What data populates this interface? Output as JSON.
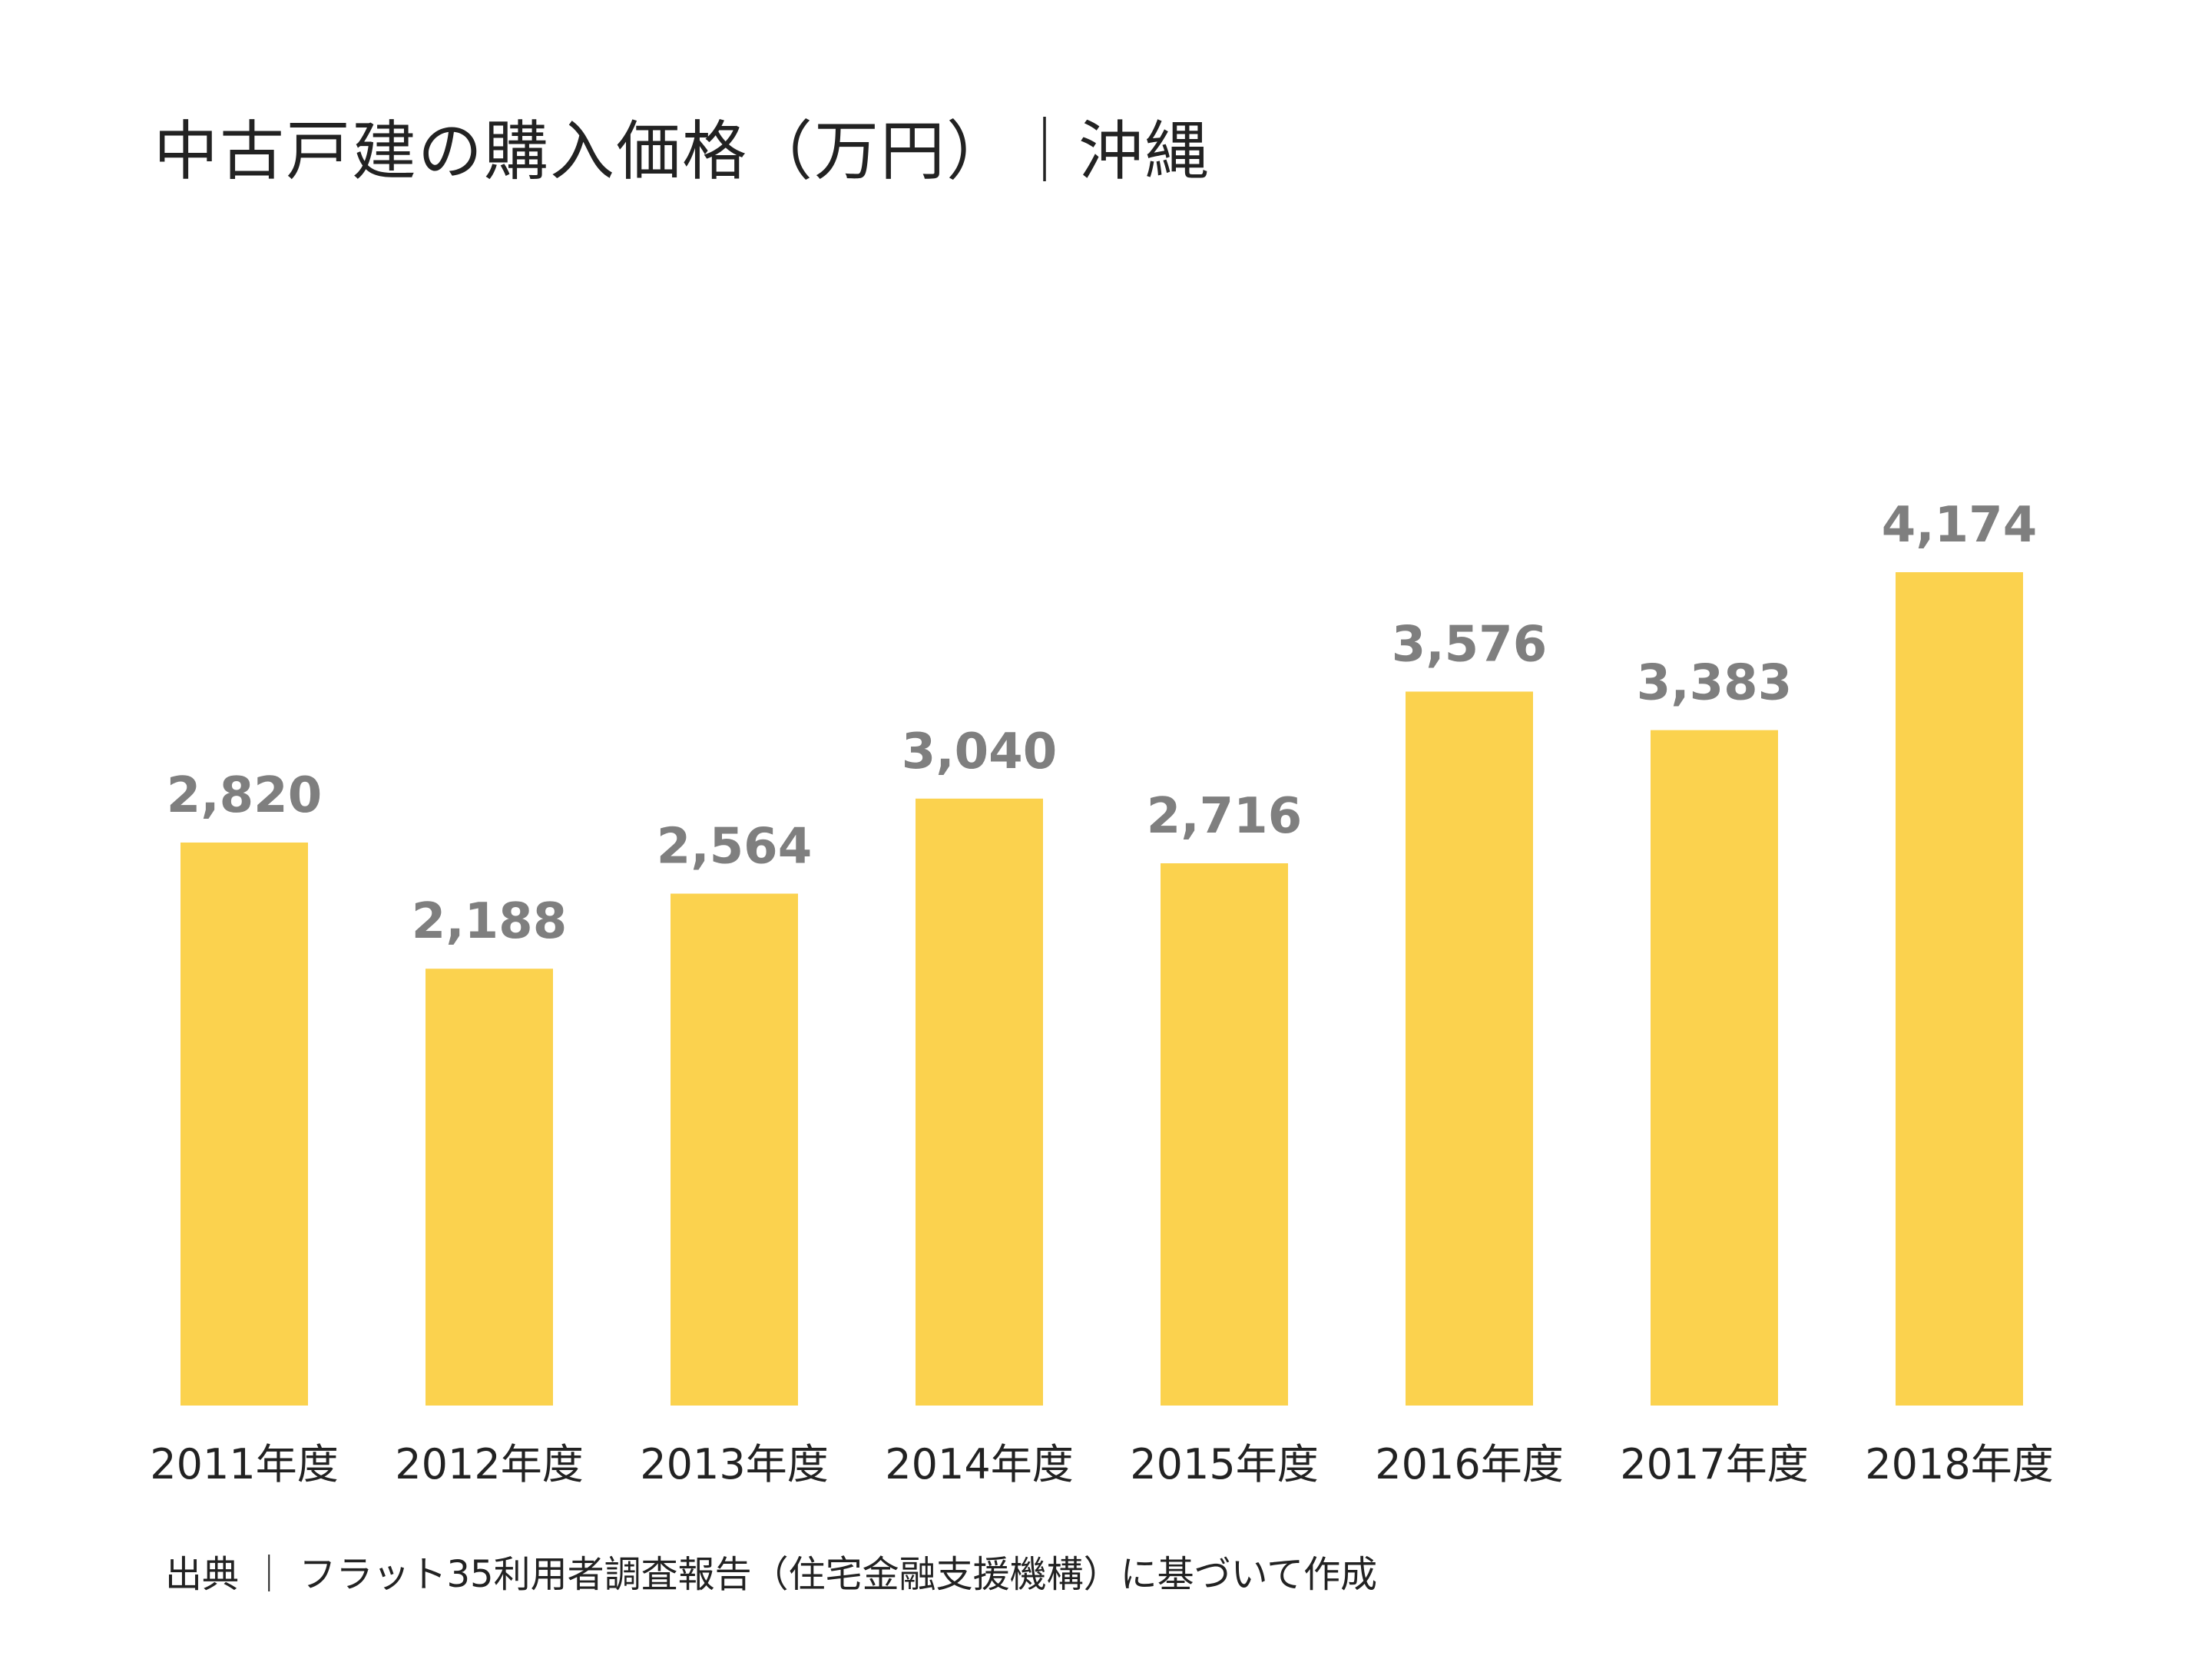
{
  "chart_data": {
    "type": "bar",
    "title": "中古戸建の購入価格（万円）｜沖縄",
    "categories": [
      "2011年度",
      "2012年度",
      "2013年度",
      "2014年度",
      "2015年度",
      "2016年度",
      "2017年度",
      "2018年度"
    ],
    "values": [
      2820,
      2188,
      2564,
      3040,
      2716,
      3576,
      3383,
      4174
    ],
    "value_labels": [
      "2,820",
      "2,188",
      "2,564",
      "3,040",
      "2,716",
      "3,576",
      "3,383",
      "4,174"
    ],
    "ylim": [
      0,
      4174
    ],
    "grid": false,
    "legend": "none",
    "bar_color": "#FBD24E",
    "label_color": "#7F7F7F",
    "tick_color": "#222222"
  },
  "source": "出典 ｜ フラット35利用者調査報告（住宅金融支援機構）に基づいて作成"
}
